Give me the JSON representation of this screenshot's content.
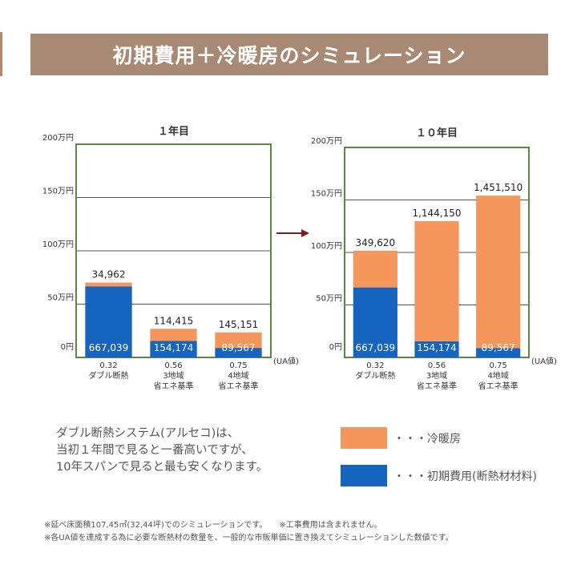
{
  "title": "初期費用＋冷暖房のシミュレーション",
  "colors": {
    "heating": "#f5975d",
    "initial": "#1565c0",
    "frame": "#5a8a3c",
    "arrow": "#7a1e1e"
  },
  "chart_data": [
    {
      "type": "bar",
      "title": "１年目",
      "ylim": [
        0,
        2000000
      ],
      "yticks": [
        "0円",
        "50万円",
        "100万円",
        "150万円",
        "200万円"
      ],
      "axis_unit_label": "(UA値)",
      "categories": [
        [
          "0.32",
          "ダブル断熱"
        ],
        [
          "0.56",
          "3地域",
          "省エネ基準"
        ],
        [
          "0.75",
          "4地域",
          "省エネ基準"
        ]
      ],
      "series": [
        {
          "key": "initial",
          "values": [
            667039,
            154174,
            89567
          ],
          "labels": [
            "667,039",
            "154,174",
            "89,567"
          ]
        },
        {
          "key": "heating",
          "values": [
            34962,
            114415,
            145151
          ],
          "labels": [
            "34,962",
            "114,415",
            "145,151"
          ]
        }
      ]
    },
    {
      "type": "bar",
      "title": "１０年目",
      "ylim": [
        0,
        2000000
      ],
      "yticks": [
        "0円",
        "50万円",
        "100万円",
        "150万円",
        "200万円"
      ],
      "axis_unit_label": "(UA値)",
      "categories": [
        [
          "0.32",
          "ダブル断熱"
        ],
        [
          "0.56",
          "3地域",
          "省エネ基準"
        ],
        [
          "0.75",
          "4地域",
          "省エネ基準"
        ]
      ],
      "series": [
        {
          "key": "initial",
          "values": [
            667039,
            154174,
            89567
          ],
          "labels": [
            "667,039",
            "154,174",
            "89,567"
          ]
        },
        {
          "key": "heating",
          "values": [
            349620,
            1144150,
            1451510
          ],
          "labels": [
            "349,620",
            "1,144,150",
            "1,451,510"
          ]
        }
      ]
    }
  ],
  "description": [
    "ダブル断熱システム(アルセコ)は、",
    "当初１年間で見ると一番高いですが、",
    "10年スパンで見ると最も安くなります。"
  ],
  "legend": [
    {
      "key": "heating",
      "text": "・・・冷暖房",
      "color": "#f5975d"
    },
    {
      "key": "initial",
      "text": "・・・初期費用(断熱材材料)",
      "color": "#1565c0"
    }
  ],
  "notes": [
    "※延べ床面積107,45㎡(32,44坪)でのシミュレーションです。　　※工事費用は含まれません。",
    "※各UA値を達成する為に必要な断熱材の数量を、一般的な市販単価に置き換えてシミュレーションした数値です。"
  ]
}
